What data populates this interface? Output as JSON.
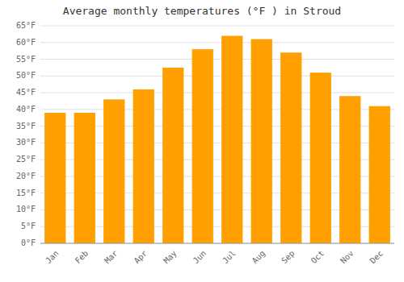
{
  "chart_data": {
    "type": "bar",
    "title": "Average monthly temperatures (°F ) in Stroud",
    "categories": [
      "Jan",
      "Feb",
      "Mar",
      "Apr",
      "May",
      "Jun",
      "Jul",
      "Aug",
      "Sep",
      "Oct",
      "Nov",
      "Dec"
    ],
    "values": [
      39,
      39,
      43,
      46,
      52.5,
      58,
      62,
      61,
      57,
      51,
      44,
      41
    ],
    "color": "#FFA000",
    "ylim": [
      0,
      65
    ],
    "yticks": [
      {
        "value": 0,
        "label": "0°F"
      },
      {
        "value": 5,
        "label": "5°F"
      },
      {
        "value": 10,
        "label": "10°F"
      },
      {
        "value": 15,
        "label": "15°F"
      },
      {
        "value": 20,
        "label": "20°F"
      },
      {
        "value": 25,
        "label": "25°F"
      },
      {
        "value": 30,
        "label": "30°F"
      },
      {
        "value": 35,
        "label": "35°F"
      },
      {
        "value": 40,
        "label": "40°F"
      },
      {
        "value": 45,
        "label": "45°F"
      },
      {
        "value": 50,
        "label": "50°F"
      },
      {
        "value": 55,
        "label": "55°F"
      },
      {
        "value": 60,
        "label": "60°F"
      },
      {
        "value": 65,
        "label": "65°F"
      }
    ],
    "grid": true
  }
}
